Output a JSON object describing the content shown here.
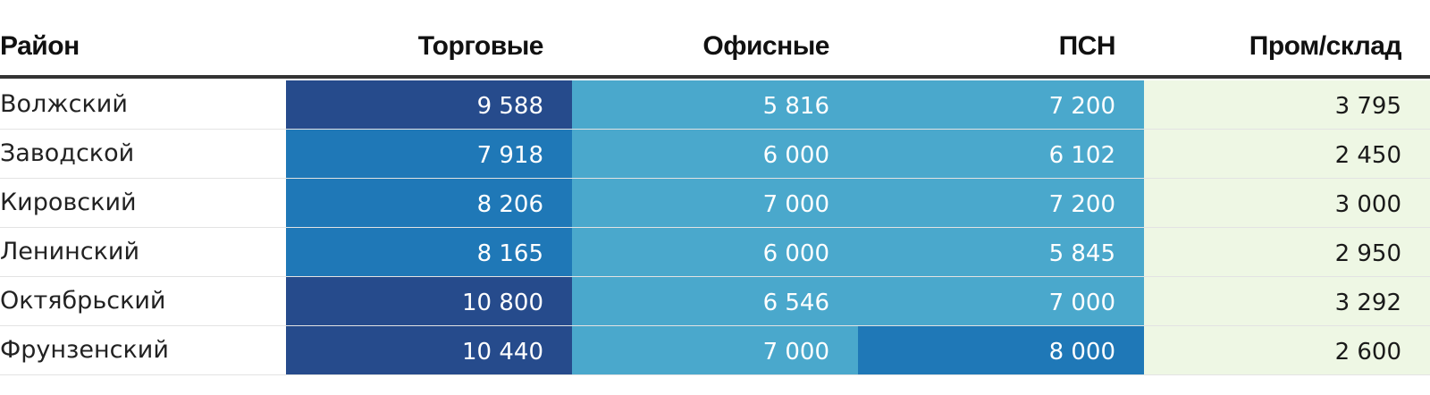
{
  "chart_data": {
    "type": "table",
    "columns": [
      "Район",
      "Торговые",
      "Офисные",
      "ПСН",
      "Пром/склад"
    ],
    "rows": [
      {
        "district": "Волжский",
        "values": [
          "9 588",
          "5 816",
          "7 200",
          "3 795"
        ]
      },
      {
        "district": "Заводской",
        "values": [
          "7 918",
          "6 000",
          "6 102",
          "2 450"
        ]
      },
      {
        "district": "Кировский",
        "values": [
          "8 206",
          "7 000",
          "7 200",
          "3 000"
        ]
      },
      {
        "district": "Ленинский",
        "values": [
          "8 165",
          "6 000",
          "5 845",
          "2 950"
        ]
      },
      {
        "district": "Октябрьский",
        "values": [
          "10 800",
          "6 546",
          "7 000",
          "3 292"
        ]
      },
      {
        "district": "Фрунзенский",
        "values": [
          "10 440",
          "7 000",
          "8 000",
          "2 600"
        ]
      }
    ],
    "color_scale": [
      {
        "max": 3999,
        "bg": "#eef7e4",
        "fg": "#1a1a1a"
      },
      {
        "max": 7599,
        "bg": "#4aa8cc",
        "fg": "#ffffff"
      },
      {
        "max": 8999,
        "bg": "#1f78b7",
        "fg": "#ffffff"
      },
      {
        "max": 999999,
        "bg": "#264b8c",
        "fg": "#ffffff"
      }
    ]
  }
}
